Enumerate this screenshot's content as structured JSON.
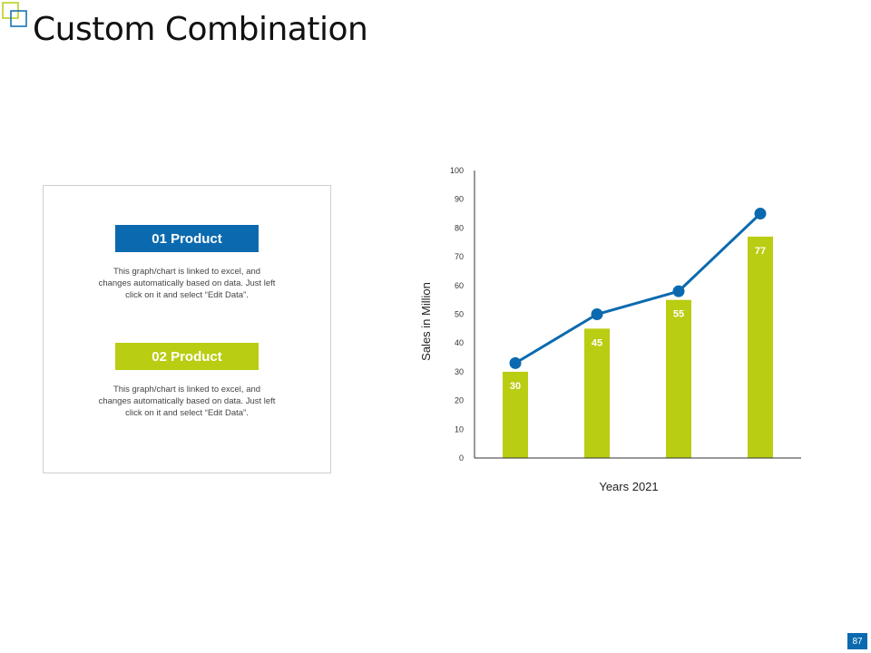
{
  "slide": {
    "title": "Custom Combination",
    "page_number": "87"
  },
  "colors": {
    "blue": "#0b6aaf",
    "green": "#b9cd12",
    "axis": "#333333"
  },
  "legend": {
    "product1": {
      "label": "01 Product",
      "description": "This graph/chart is linked to excel, and changes automatically based on data. Just left click on it and select “Edit Data”."
    },
    "product2": {
      "label": "02 Product",
      "description": "This graph/chart is linked to excel, and changes automatically based on data. Just left click on it and select “Edit Data”."
    }
  },
  "chart_data": {
    "type": "bar",
    "title": "",
    "xlabel": "Years 2021",
    "ylabel": "Sales in Million",
    "ylim": [
      0,
      100
    ],
    "yticks": [
      0,
      10,
      20,
      30,
      40,
      50,
      60,
      70,
      80,
      90,
      100
    ],
    "categories": [
      "",
      "",
      "",
      ""
    ],
    "series": [
      {
        "type": "bar",
        "color": "#b9cd12",
        "values": [
          30,
          45,
          55,
          77
        ],
        "data_labels": [
          "30",
          "45",
          "55",
          "77"
        ]
      },
      {
        "type": "line",
        "color": "#0b6aaf",
        "values": [
          33,
          50,
          58,
          85
        ]
      }
    ],
    "grid": false
  }
}
